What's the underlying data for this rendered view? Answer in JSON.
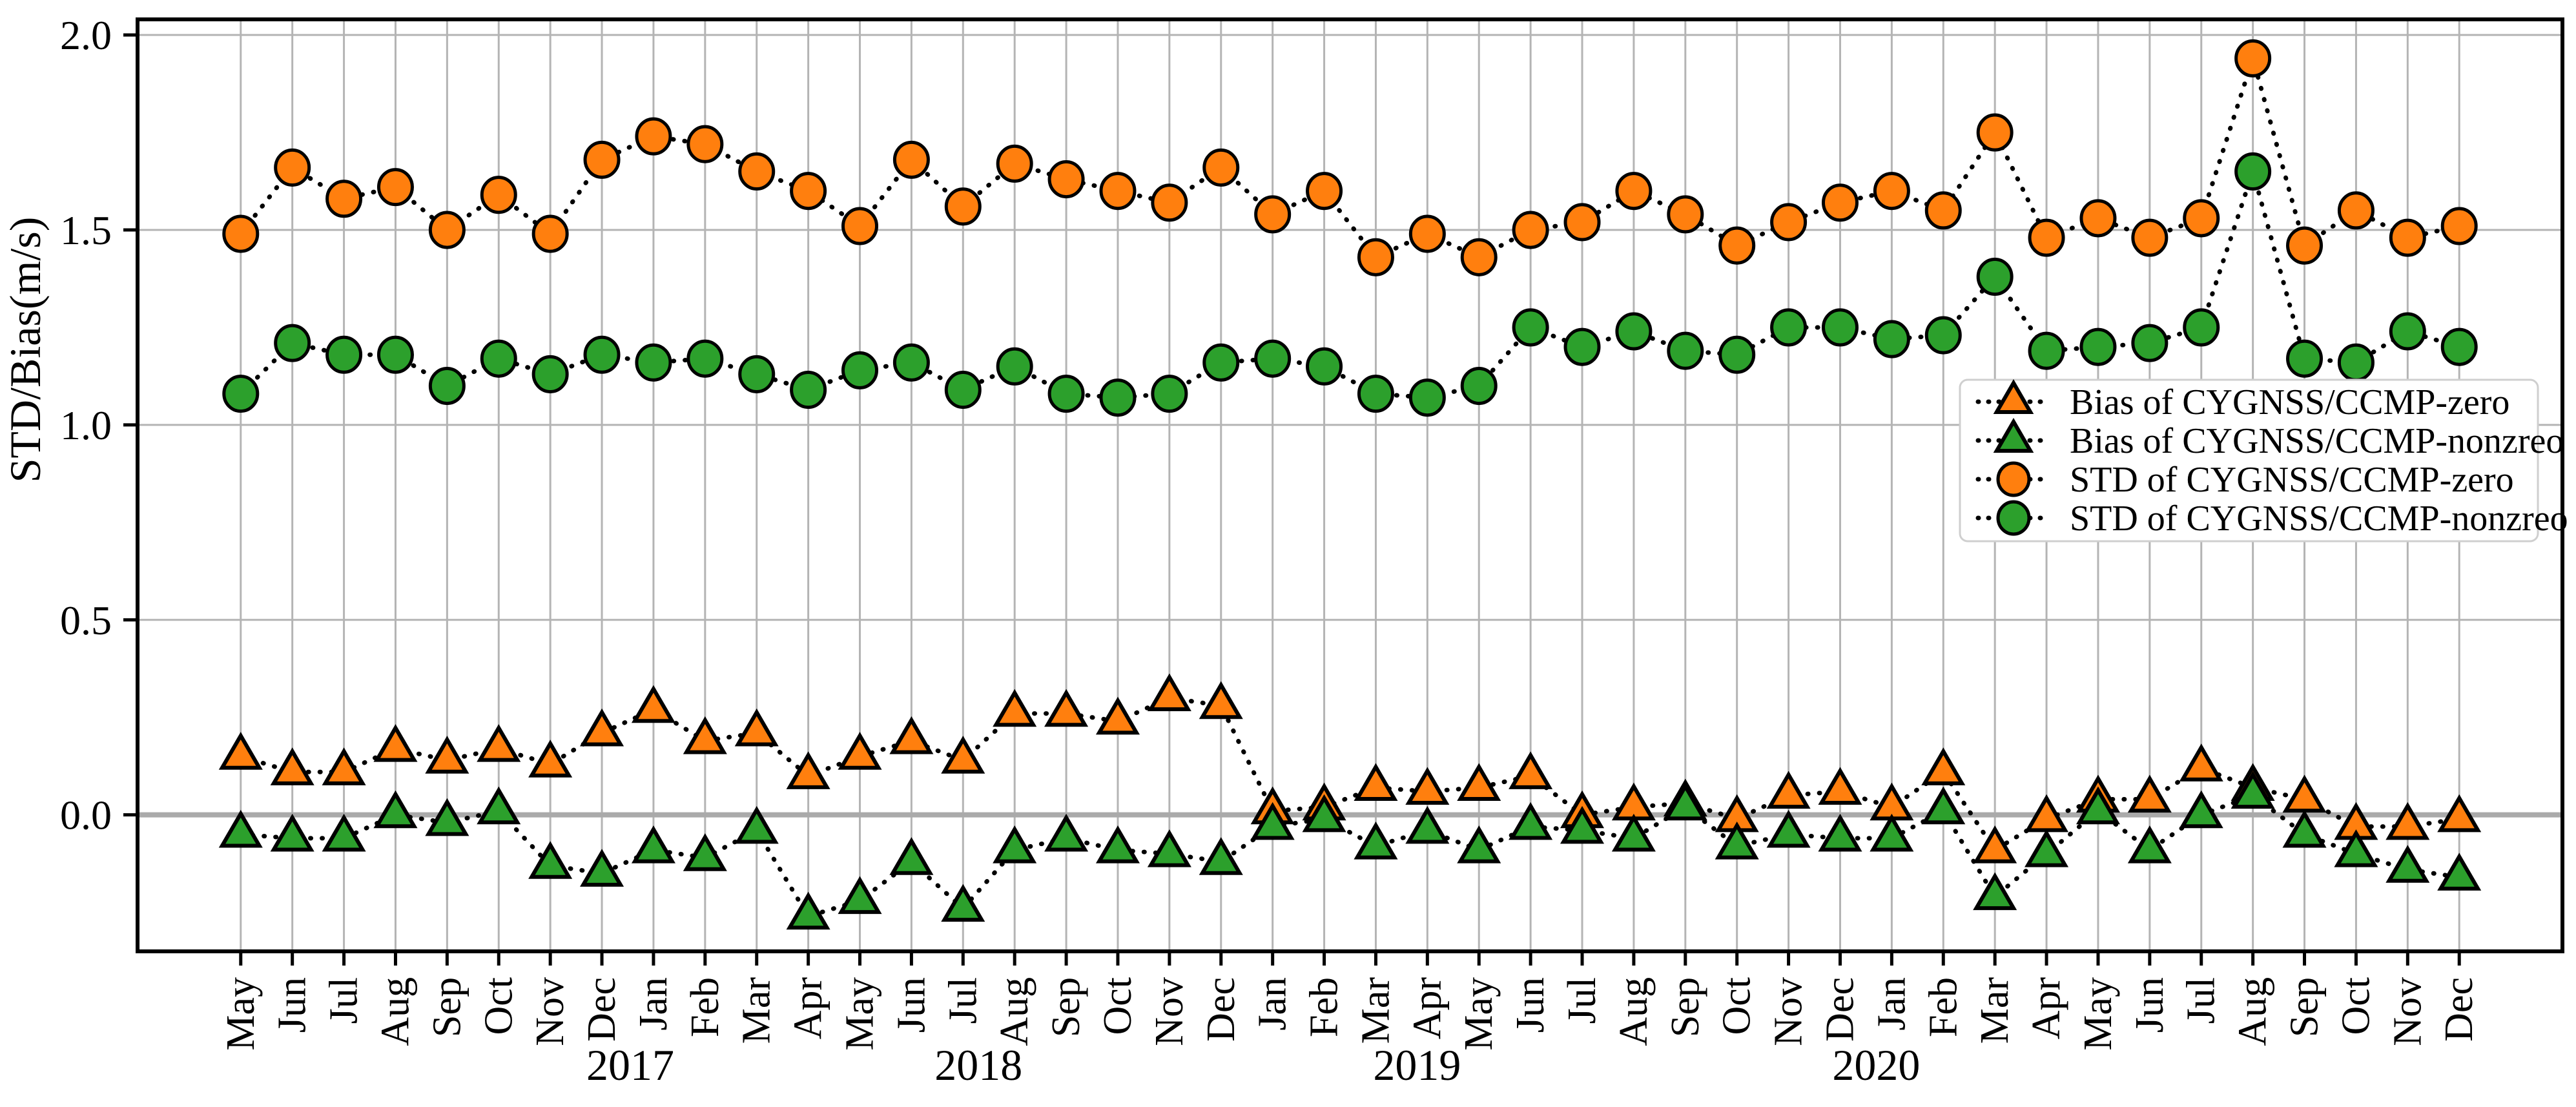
{
  "figure": {
    "ylabel": "STD/Bias(m/s)",
    "background_color": "#ffffff",
    "grid_color": "#b4b4b4",
    "zero_line_color": "#aaaaaa",
    "spine_color": "#000000",
    "line_color": "#000000",
    "line_style": "dotted"
  },
  "chart_data": {
    "type": "line",
    "title": "",
    "xlabel": "",
    "ylabel": "STD/Bias(m/s)",
    "ylim": [
      -0.35,
      2.04
    ],
    "grid": true,
    "legend_position": "center-right",
    "ytick_labels": [
      "0.0",
      "0.5",
      "1.0",
      "1.5",
      "2.0"
    ],
    "ytick_values": [
      0.0,
      0.5,
      1.0,
      1.5,
      2.0
    ],
    "x_tick_labels": [
      "May",
      "Jun",
      "Jul",
      "Aug",
      "Sep",
      "Oct",
      "Nov",
      "Dec",
      "Jan",
      "Feb",
      "Mar",
      "Apr",
      "May",
      "Jun",
      "Jul",
      "Aug",
      "Sep",
      "Oct",
      "Nov",
      "Dec",
      "Jan",
      "Feb",
      "Mar",
      "Apr",
      "May",
      "Jun",
      "Jul",
      "Aug",
      "Sep",
      "Oct",
      "Nov",
      "Dec",
      "Jan",
      "Feb",
      "Mar",
      "Apr",
      "May",
      "Jun",
      "Jul",
      "Aug",
      "Sep",
      "Oct",
      "Nov",
      "Dec"
    ],
    "year_labels": [
      {
        "text": "2017",
        "index": 7.55
      },
      {
        "text": "2018",
        "index": 14.3
      },
      {
        "text": "2019",
        "index": 22.8
      },
      {
        "text": "2020",
        "index": 31.7
      }
    ],
    "series": [
      {
        "name": "Bias of CYGNSS/CCMP-zero",
        "marker": "triangle",
        "color": "#ff7f0e",
        "values": [
          0.15,
          0.11,
          0.11,
          0.17,
          0.14,
          0.17,
          0.13,
          0.21,
          0.27,
          0.19,
          0.21,
          0.1,
          0.15,
          0.19,
          0.14,
          0.26,
          0.26,
          0.24,
          0.3,
          0.28,
          0.01,
          0.02,
          0.07,
          0.06,
          0.07,
          0.1,
          0.0,
          0.02,
          0.03,
          -0.01,
          0.05,
          0.06,
          0.02,
          0.11,
          -0.09,
          -0.01,
          0.04,
          0.04,
          0.12,
          0.07,
          0.04,
          -0.03,
          -0.03,
          -0.01
        ]
      },
      {
        "name": "Bias of CYGNSS/CCMP-nonzreo",
        "marker": "triangle",
        "color": "#2ca02c",
        "values": [
          -0.05,
          -0.06,
          -0.06,
          0.0,
          -0.02,
          0.01,
          -0.13,
          -0.15,
          -0.09,
          -0.11,
          -0.04,
          -0.26,
          -0.22,
          -0.12,
          -0.24,
          -0.09,
          -0.06,
          -0.09,
          -0.1,
          -0.12,
          -0.03,
          -0.01,
          -0.08,
          -0.04,
          -0.09,
          -0.03,
          -0.04,
          -0.06,
          0.02,
          -0.08,
          -0.05,
          -0.06,
          -0.06,
          0.01,
          -0.21,
          -0.1,
          0.01,
          -0.09,
          0.0,
          0.05,
          -0.05,
          -0.1,
          -0.14,
          -0.16
        ]
      },
      {
        "name": "STD of CYGNSS/CCMP-zero",
        "marker": "circle",
        "color": "#ff7f0e",
        "values": [
          1.49,
          1.66,
          1.58,
          1.61,
          1.5,
          1.59,
          1.49,
          1.68,
          1.74,
          1.72,
          1.65,
          1.6,
          1.51,
          1.68,
          1.56,
          1.67,
          1.63,
          1.6,
          1.57,
          1.66,
          1.54,
          1.6,
          1.43,
          1.49,
          1.43,
          1.5,
          1.52,
          1.6,
          1.54,
          1.46,
          1.52,
          1.57,
          1.6,
          1.55,
          1.75,
          1.48,
          1.53,
          1.48,
          1.53,
          1.94,
          1.46,
          1.55,
          1.48,
          1.51
        ]
      },
      {
        "name": "STD of CYGNSS/CCMP-nonzreo",
        "marker": "circle",
        "color": "#2ca02c",
        "values": [
          1.08,
          1.21,
          1.18,
          1.18,
          1.1,
          1.17,
          1.13,
          1.18,
          1.16,
          1.17,
          1.13,
          1.09,
          1.14,
          1.16,
          1.09,
          1.15,
          1.08,
          1.07,
          1.08,
          1.16,
          1.17,
          1.15,
          1.08,
          1.07,
          1.1,
          1.25,
          1.2,
          1.24,
          1.19,
          1.18,
          1.25,
          1.25,
          1.22,
          1.23,
          1.38,
          1.19,
          1.2,
          1.21,
          1.25,
          1.65,
          1.17,
          1.16,
          1.24,
          1.2
        ]
      }
    ]
  }
}
